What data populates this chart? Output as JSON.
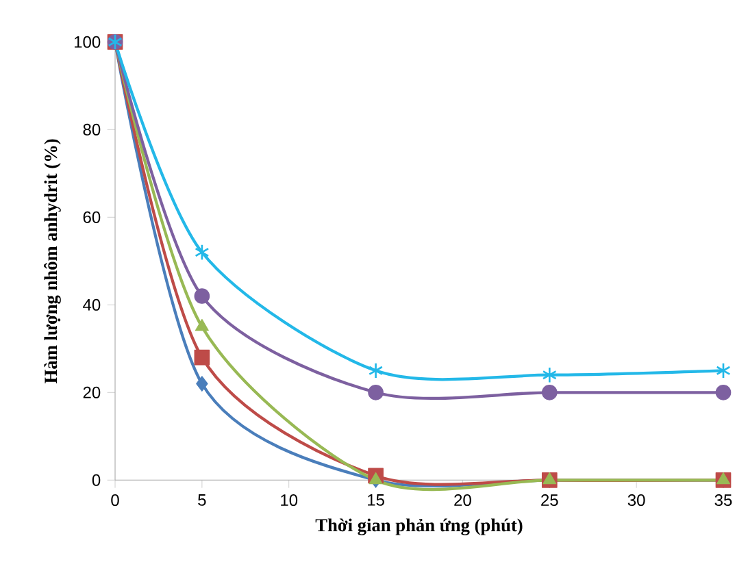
{
  "chart_data": {
    "type": "line",
    "xlabel": "Thời gian phản ứng (phút)",
    "ylabel": "Hàm lượng nhôm anhydrit (%)",
    "x": [
      0,
      5,
      15,
      25,
      35
    ],
    "series": [
      {
        "color": "#4a7ebb",
        "marker": "diamond",
        "values": [
          100,
          22,
          0,
          0,
          0
        ]
      },
      {
        "color": "#be4b48",
        "marker": "square",
        "values": [
          100,
          28,
          1,
          0,
          0
        ]
      },
      {
        "color": "#98b954",
        "marker": "triangle",
        "values": [
          100,
          35,
          0,
          0,
          0
        ]
      },
      {
        "color": "#7d60a0",
        "marker": "circle",
        "values": [
          100,
          42,
          20,
          20,
          20
        ]
      },
      {
        "color": "#23b8e8",
        "marker": "cross",
        "values": [
          100,
          52,
          25,
          24,
          25
        ]
      }
    ],
    "xlim": [
      0,
      35
    ],
    "ylim": [
      0,
      100
    ],
    "xticks": [
      0,
      5,
      10,
      15,
      20,
      25,
      30,
      35
    ],
    "yticks": [
      0,
      20,
      40,
      60,
      80,
      100
    ],
    "grid": false
  }
}
